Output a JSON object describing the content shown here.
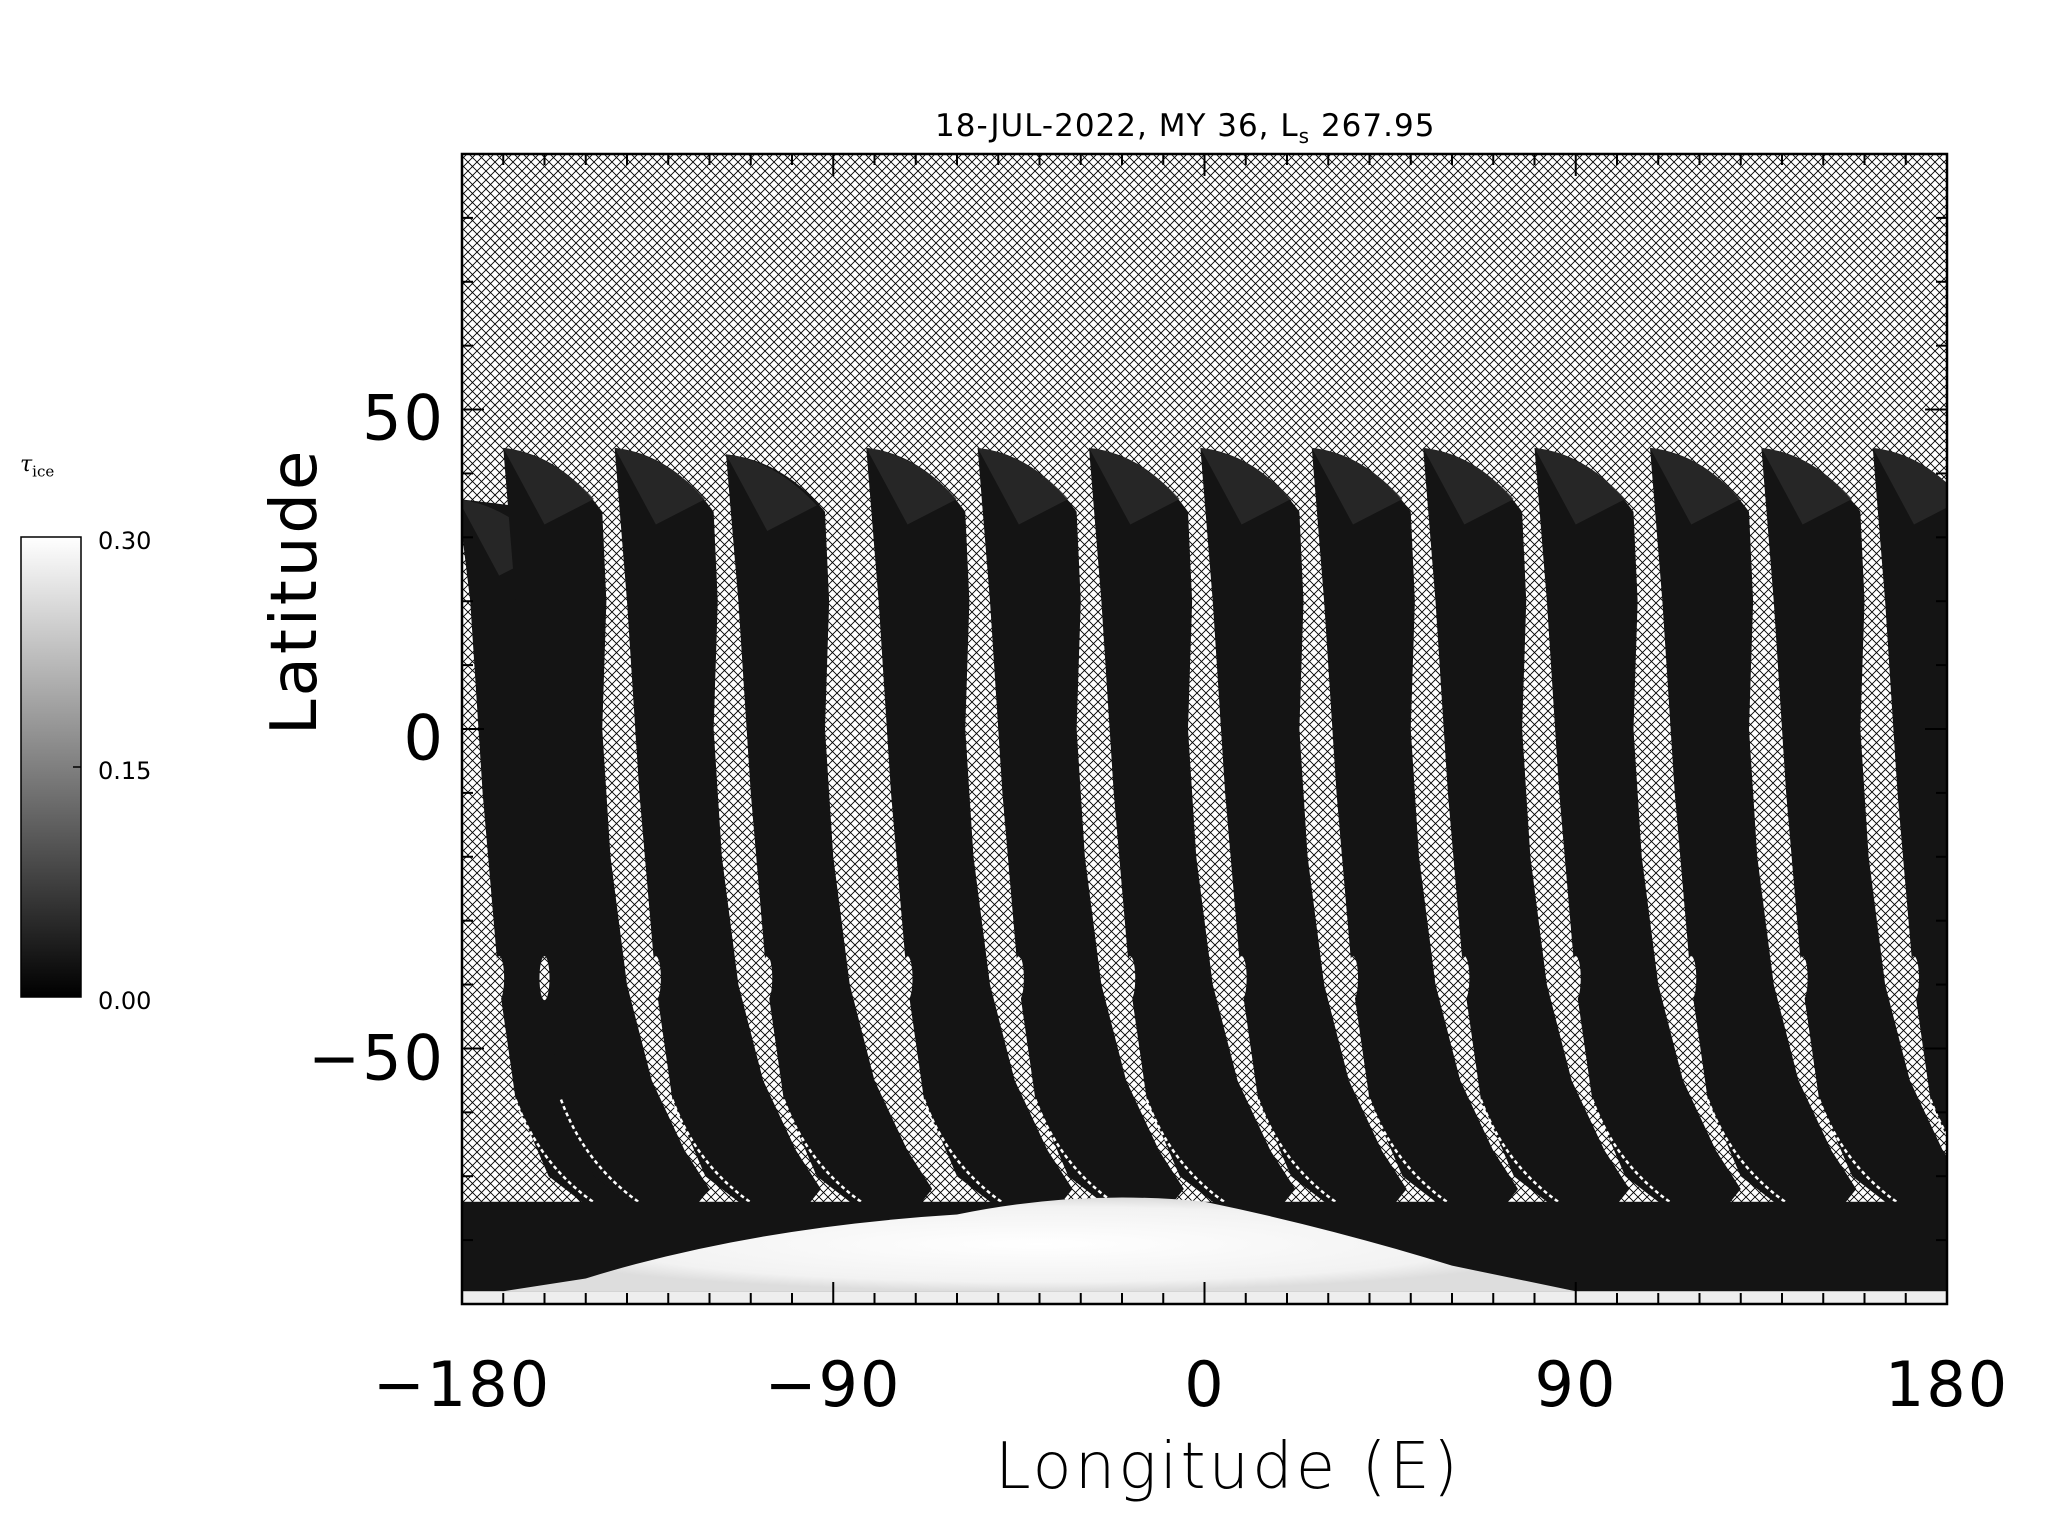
{
  "chart_data": {
    "type": "heatmap",
    "title": "18-JUL-2022, MY 36,  L",
    "title_subscript": "s",
    "title_suffix": " 267.95",
    "xlabel": "Longitude (E)",
    "ylabel": "Latitude",
    "xlim": [
      -180,
      180
    ],
    "ylim": [
      -90,
      90
    ],
    "xticks": [
      "−180",
      "−90",
      "0",
      "90",
      "180"
    ],
    "yticks": [
      "50",
      "0",
      "−50"
    ],
    "xtick_values": [
      -180,
      -90,
      0,
      90,
      180
    ],
    "ytick_values": [
      50,
      0,
      -50
    ],
    "colormap": "grayscale",
    "colorbar": {
      "label": "τ",
      "label_subscript": "ice",
      "range": [
        0.0,
        0.3
      ],
      "ticks": [
        "0.30",
        "0.15",
        "0.00"
      ],
      "tick_values": [
        0.3,
        0.15,
        0.0
      ]
    },
    "no_data_pattern": "crosshatch",
    "swaths": [
      {
        "lon_top": -181,
        "lat_top": 36
      },
      {
        "lon_top": -170,
        "lat_top": 44
      },
      {
        "lon_top": -143,
        "lat_top": 44
      },
      {
        "lon_top": -116,
        "lat_top": 43
      },
      {
        "lon_top": -82,
        "lat_top": 44
      },
      {
        "lon_top": -55,
        "lat_top": 44
      },
      {
        "lon_top": -28,
        "lat_top": 44
      },
      {
        "lon_top": -1,
        "lat_top": 44
      },
      {
        "lon_top": 26,
        "lat_top": 44
      },
      {
        "lon_top": 53,
        "lat_top": 44
      },
      {
        "lon_top": 80,
        "lat_top": 44
      },
      {
        "lon_top": 108,
        "lat_top": 44
      },
      {
        "lon_top": 135,
        "lat_top": 44
      },
      {
        "lon_top": 162,
        "lat_top": 44
      }
    ],
    "polar_cap": {
      "value": 0.3,
      "lat_edge": -74
    }
  },
  "colors": {
    "background": "#ffffff",
    "swath": "#141414",
    "cap": "#f7f7f7",
    "hatch": "#000000"
  }
}
